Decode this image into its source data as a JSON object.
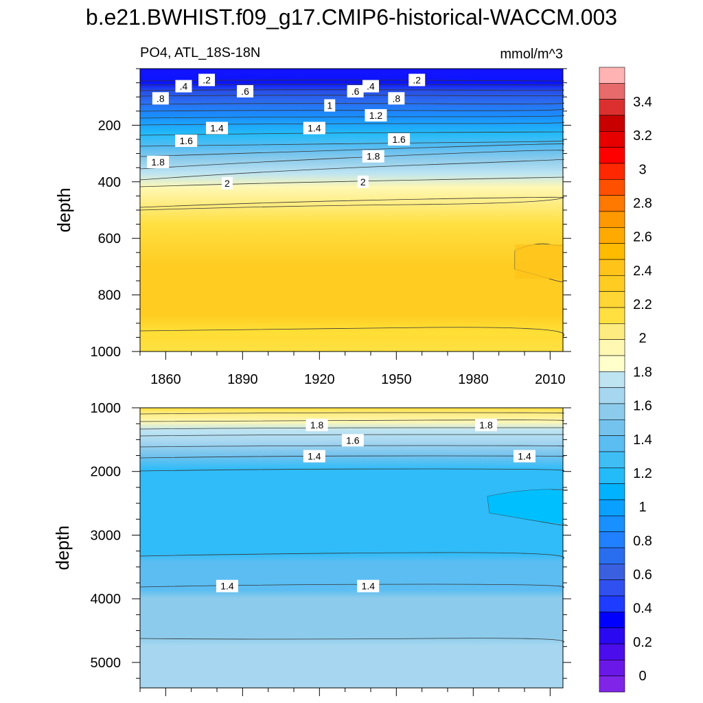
{
  "title": "b.e21.BWHIST.f09_g17.CMIP6-historical-WACCM.003",
  "subtitle_left": "PO4, ATL_18S-18N",
  "subtitle_right": "mmol/m^3",
  "chart_data": [
    {
      "type": "contour",
      "panel": "upper",
      "ylabel": "depth",
      "xlabel": "",
      "xlim": [
        1850,
        2015
      ],
      "ylim": [
        1000,
        0
      ],
      "y_inverted": true,
      "xticks": [
        1860,
        1890,
        1920,
        1950,
        1980,
        2010
      ],
      "yticks": [
        200,
        400,
        600,
        800,
        1000
      ],
      "levels_depth_at_1850": [
        {
          "value": 0.2,
          "depth": 30
        },
        {
          "value": 0.4,
          "depth": 50
        },
        {
          "value": 0.6,
          "depth": 70
        },
        {
          "value": 0.8,
          "depth": 100
        },
        {
          "value": 1.0,
          "depth": 140
        },
        {
          "value": 1.2,
          "depth": 175
        },
        {
          "value": 1.4,
          "depth": 215
        },
        {
          "value": 1.6,
          "depth": 255
        },
        {
          "value": 1.8,
          "depth": 330
        },
        {
          "value": 2.0,
          "depth": 400
        },
        {
          "value": 2.2,
          "depth": 500
        },
        {
          "value": 2.0,
          "depth": 920
        }
      ],
      "feature": {
        "description_value": 2.4,
        "x_range": [
          1995,
          2015
        ],
        "depth_range": [
          620,
          760
        ]
      },
      "contour_labels": [
        {
          "text": ".2",
          "x": 1876,
          "depth": 40
        },
        {
          "text": ".2",
          "x": 1958,
          "depth": 40
        },
        {
          "text": ".4",
          "x": 1867,
          "depth": 62
        },
        {
          "text": ".4",
          "x": 1940,
          "depth": 62
        },
        {
          "text": ".6",
          "x": 1891,
          "depth": 80
        },
        {
          "text": ".6",
          "x": 1934,
          "depth": 80
        },
        {
          "text": ".8",
          "x": 1858,
          "depth": 105
        },
        {
          "text": ".8",
          "x": 1950,
          "depth": 105
        },
        {
          "text": "1",
          "x": 1924,
          "depth": 130
        },
        {
          "text": "1.2",
          "x": 1942,
          "depth": 165
        },
        {
          "text": "1.4",
          "x": 1880,
          "depth": 210
        },
        {
          "text": "1.4",
          "x": 1918,
          "depth": 210
        },
        {
          "text": "1.6",
          "x": 1868,
          "depth": 255
        },
        {
          "text": "1.6",
          "x": 1951,
          "depth": 250
        },
        {
          "text": "1.8",
          "x": 1857,
          "depth": 330
        },
        {
          "text": "1.8",
          "x": 1941,
          "depth": 310
        },
        {
          "text": "2",
          "x": 1884,
          "depth": 405
        },
        {
          "text": "2",
          "x": 1937,
          "depth": 400
        }
      ]
    },
    {
      "type": "contour",
      "panel": "lower",
      "ylabel": "depth",
      "xlabel": "",
      "xlim": [
        1850,
        2015
      ],
      "ylim": [
        5400,
        1000
      ],
      "y_inverted": true,
      "yticks": [
        1000,
        2000,
        3000,
        4000,
        5000
      ],
      "levels_depth_at_1850": [
        {
          "value": 1.8,
          "depth": 1270
        },
        {
          "value": 1.6,
          "depth": 1550
        },
        {
          "value": 1.4,
          "depth": 1980
        },
        {
          "value": 1.4,
          "depth": 3320
        },
        {
          "value": 1.2,
          "depth": 3800
        },
        {
          "value": 1.4,
          "depth": 4600
        }
      ],
      "feature": {
        "description_value": 1.1,
        "x_range": [
          1985,
          2015
        ],
        "depth_range": [
          2300,
          2800
        ]
      },
      "contour_labels": [
        {
          "text": "1.8",
          "x": 1919,
          "depth": 1270
        },
        {
          "text": "1.8",
          "x": 1985,
          "depth": 1270
        },
        {
          "text": "1.6",
          "x": 1933,
          "depth": 1510
        },
        {
          "text": "1.4",
          "x": 1918,
          "depth": 1760
        },
        {
          "text": "1.4",
          "x": 2000,
          "depth": 1760
        },
        {
          "text": "1.4",
          "x": 1884,
          "depth": 3800
        },
        {
          "text": "1.4",
          "x": 1939,
          "depth": 3800
        }
      ]
    }
  ],
  "colorbar": {
    "labels": [
      "3.4",
      "3.2",
      "3",
      "2.8",
      "2.6",
      "2.4",
      "2.2",
      "2",
      "1.8",
      "1.6",
      "1.4",
      "1.2",
      "1",
      "0.8",
      "0.6",
      "0.4",
      "0.2",
      "0"
    ],
    "colors": [
      "#FFB3B3",
      "#E86B6B",
      "#DC3030",
      "#C80000",
      "#E60000",
      "#FF0000",
      "#FF2800",
      "#FF5000",
      "#FF7800",
      "#FF9900",
      "#FFAA00",
      "#FFBB00",
      "#FFC31A",
      "#FFCC22",
      "#FFD633",
      "#FFE040",
      "#FFEC80",
      "#FFF8B3",
      "#FFFFCC",
      "#BEE4F2",
      "#A7D7F0",
      "#8CCBEB",
      "#74C3EE",
      "#5BBDF2",
      "#3FBDF5",
      "#23BBF8",
      "#00B2FF",
      "#0AA0FF",
      "#1890FF",
      "#2080FF",
      "#2A6EF0",
      "#3A60E0",
      "#3050F0",
      "#1E3CFF",
      "#0000FF",
      "#2A08F0",
      "#4B0DEB",
      "#6A18E8",
      "#8025E8"
    ]
  }
}
